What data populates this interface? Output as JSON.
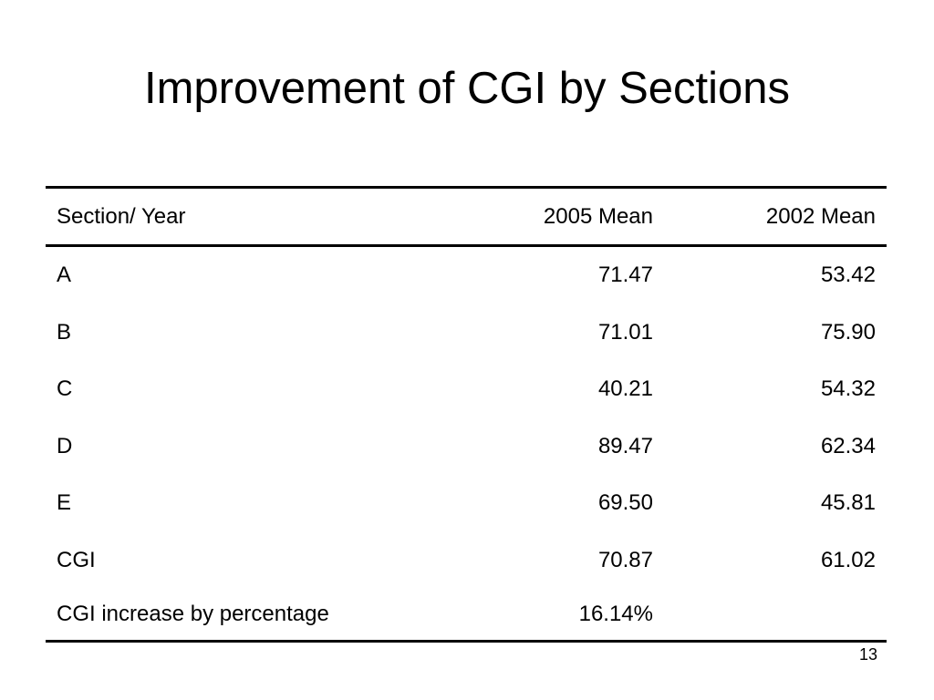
{
  "slide": {
    "title": "Improvement of CGI by Sections",
    "page_number": "13"
  },
  "table": {
    "headers": [
      "Section/ Year",
      "2005 Mean",
      "2002 Mean"
    ],
    "rows": [
      [
        "A",
        "71.47",
        "53.42"
      ],
      [
        "B",
        "71.01",
        "75.90"
      ],
      [
        "C",
        "40.21",
        "54.32"
      ],
      [
        "D",
        "89.47",
        "62.34"
      ],
      [
        "E",
        "69.50",
        "45.81"
      ],
      [
        "CGI",
        "70.87",
        "61.02"
      ],
      [
        "CGI increase by percentage",
        "16.14%",
        ""
      ]
    ]
  }
}
